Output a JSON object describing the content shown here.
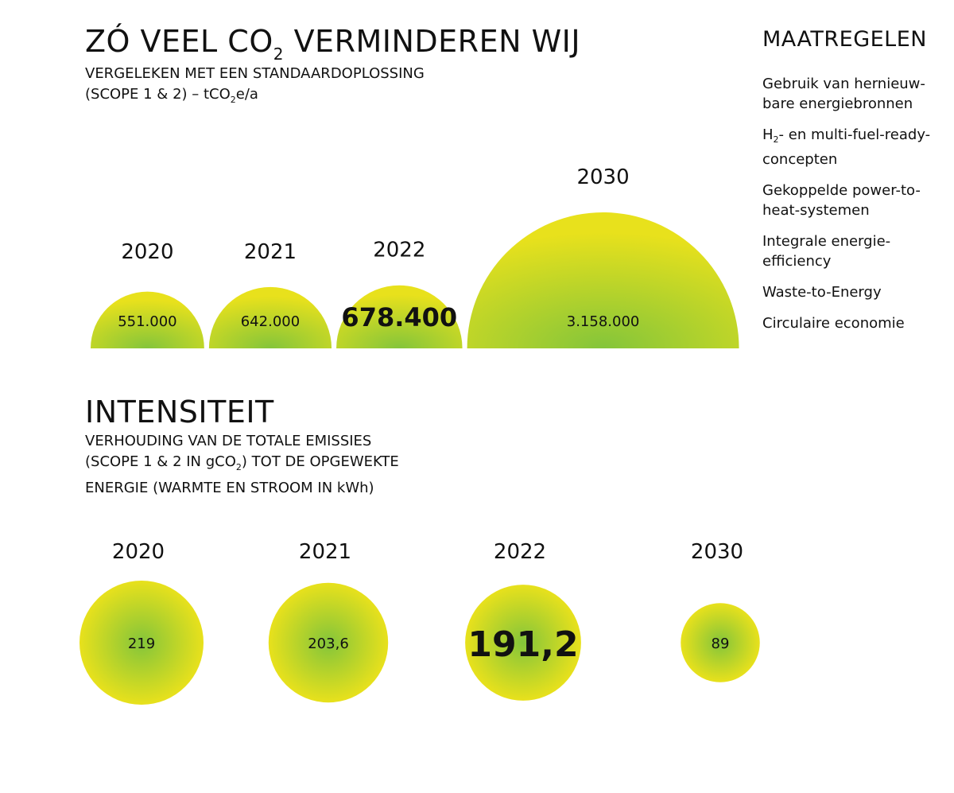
{
  "header": {
    "title_main": "ZÓ VEEL CO",
    "title_sub": "2",
    "title_rest": "VERMINDEREN WIJ",
    "subtitle_line1": "VERGELEKEN MET EEN STANDAARDOPLOSSING",
    "subtitle_line2_a": "(SCOPE 1 & 2) – tCO",
    "subtitle_line2_sub": "2",
    "subtitle_line2_b": "e/a"
  },
  "measures": {
    "title": "MAATREGELEN",
    "item1": "Gebruik van hernieuw-bare energiebronnen",
    "item2_a": "H",
    "item2_sub": "2",
    "item2_b": "- en multi-fuel-ready-concepten",
    "item3": "Gekoppelde power-to-heat-systemen",
    "item4": "Integrale energie-efficiency",
    "item5": "Waste-to-Energy",
    "item6": "Circulaire economie"
  },
  "intensity_header": {
    "title": "INTENSITEIT",
    "line1": "VERHOUDING VAN DE TOTALE EMISSIES",
    "line2_a": "(SCOPE 1 & 2 IN gCO",
    "line2_sub": "2",
    "line2_b": ") TOT DE OPGEWEKTE",
    "line3": "ENERGIE (WARMTE EN STROOM IN kWh)"
  },
  "colors": {
    "outer": "#e8e11c",
    "inner": "#84c53a",
    "text": "#111111"
  },
  "chart_data": [
    {
      "type": "semicircle-area",
      "title": "ZÓ VEEL CO2 VERMINDEREN WIJ",
      "unit": "tCO2e/a",
      "categories": [
        "2020",
        "2021",
        "2022",
        "2030"
      ],
      "values": [
        551000,
        642000,
        678400,
        3158000
      ],
      "labels": [
        "551.000",
        "642.000",
        "678.400",
        "3.158.000"
      ],
      "highlight": "2022"
    },
    {
      "type": "bubble",
      "title": "INTENSITEIT",
      "unit": "gCO2/kWh",
      "categories": [
        "2020",
        "2021",
        "2022",
        "2030"
      ],
      "values": [
        219,
        203.6,
        191.2,
        89
      ],
      "labels": [
        "219",
        "203,6",
        "191,2",
        "89"
      ],
      "highlight": "2022"
    }
  ]
}
